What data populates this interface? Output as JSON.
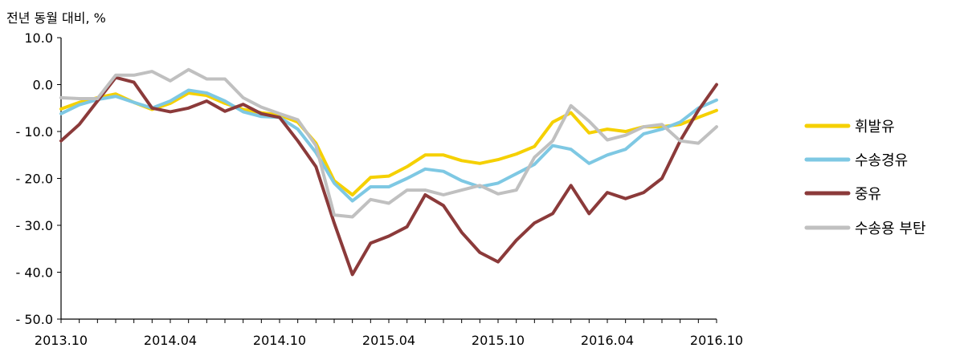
{
  "chart_data": {
    "type": "line",
    "ylabel": "전년 동월 대비, %",
    "ylim": [
      -50,
      10
    ],
    "yticks": [
      10,
      0,
      -10,
      -20,
      -30,
      -40,
      -50
    ],
    "ytick_labels": [
      "10.0",
      "0.0",
      "- 10.0",
      "- 20.0",
      "- 30.0",
      "- 40.0",
      "- 50.0"
    ],
    "x": [
      "2013.10",
      "2013.11",
      "2013.12",
      "2014.01",
      "2014.02",
      "2014.03",
      "2014.04",
      "2014.05",
      "2014.06",
      "2014.07",
      "2014.08",
      "2014.09",
      "2014.10",
      "2014.11",
      "2014.12",
      "2015.01",
      "2015.02",
      "2015.03",
      "2015.04",
      "2015.05",
      "2015.06",
      "2015.07",
      "2015.08",
      "2015.09",
      "2015.10",
      "2015.11",
      "2015.12",
      "2016.01",
      "2016.02",
      "2016.03",
      "2016.04",
      "2016.05",
      "2016.06",
      "2016.07",
      "2016.08",
      "2016.09",
      "2016.10"
    ],
    "xtick_labels": [
      "2013.10",
      "2014.04",
      "2014.10",
      "2015.04",
      "2015.10",
      "2016.04",
      "2016.10"
    ],
    "grid": false,
    "legend_position": "right",
    "series": [
      {
        "name": "휘발유",
        "color": "#f5d000",
        "values": [
          -5.2,
          -3.8,
          -2.8,
          -2.0,
          -3.8,
          -5.3,
          -4.0,
          -1.8,
          -2.3,
          -4.0,
          -5.3,
          -6.0,
          -6.5,
          -8.0,
          -12.5,
          -20.5,
          -23.5,
          -19.8,
          -19.5,
          -17.5,
          -15.0,
          -15.0,
          -16.2,
          -16.8,
          -16.0,
          -14.8,
          -13.2,
          -8.0,
          -6.0,
          -10.3,
          -9.5,
          -10.0,
          -9.0,
          -9.0,
          -8.5,
          -7.0,
          -5.5
        ]
      },
      {
        "name": "수송경유",
        "color": "#7ec8e3",
        "values": [
          -6.2,
          -4.3,
          -3.2,
          -2.5,
          -3.8,
          -5.0,
          -3.5,
          -1.2,
          -1.8,
          -3.5,
          -5.8,
          -6.8,
          -7.0,
          -9.5,
          -14.5,
          -21.0,
          -24.8,
          -21.8,
          -21.8,
          -20.0,
          -18.0,
          -18.5,
          -20.5,
          -21.8,
          -21.0,
          -19.0,
          -17.0,
          -13.0,
          -13.8,
          -16.8,
          -15.0,
          -13.8,
          -10.5,
          -9.5,
          -8.0,
          -5.0,
          -3.3
        ]
      },
      {
        "name": "중유",
        "color": "#8b3a3a",
        "values": [
          -12.0,
          -8.5,
          -3.5,
          1.5,
          0.5,
          -5.0,
          -5.8,
          -5.0,
          -3.5,
          -5.7,
          -4.2,
          -6.2,
          -7.0,
          -12.0,
          -17.5,
          -29.5,
          -40.5,
          -33.8,
          -32.3,
          -30.3,
          -23.5,
          -25.8,
          -31.5,
          -35.8,
          -37.8,
          -33.2,
          -29.5,
          -27.5,
          -21.5,
          -27.5,
          -23.0,
          -24.3,
          -23.0,
          -20.0,
          -12.0,
          -5.5,
          0.0
        ]
      },
      {
        "name": "수송용 부탄",
        "color": "#c0c0c0",
        "values": [
          -2.8,
          -3.0,
          -3.0,
          2.0,
          2.0,
          2.8,
          0.8,
          3.2,
          1.2,
          1.2,
          -2.8,
          -4.8,
          -6.2,
          -7.5,
          -13.0,
          -27.8,
          -28.2,
          -24.5,
          -25.3,
          -22.5,
          -22.5,
          -23.5,
          -22.5,
          -21.5,
          -23.3,
          -22.5,
          -15.5,
          -12.0,
          -4.5,
          -7.8,
          -11.8,
          -10.8,
          -9.0,
          -8.5,
          -12.0,
          -12.5,
          -9.0
        ]
      }
    ]
  }
}
